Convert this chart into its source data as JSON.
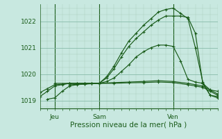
{
  "title": "",
  "xlabel": "Pression niveau de la mer( hPa )",
  "bg_color": "#c8e8e0",
  "line_color": "#1a5c1a",
  "grid_color_major": "#88bbaa",
  "grid_color_minor": "#aaccbb",
  "ylim": [
    1018.7,
    1022.65
  ],
  "xlim": [
    0,
    48
  ],
  "xtick_positions": [
    4,
    16,
    36
  ],
  "xtick_labels": [
    "Jeu",
    "Sam",
    "Ven"
  ],
  "ytick_positions": [
    1019,
    1020,
    1021,
    1022
  ],
  "ytick_labels": [
    "1019",
    "1020",
    "1021",
    "1022"
  ],
  "lines": [
    {
      "x": [
        0,
        2,
        4,
        6,
        8,
        10,
        12,
        14,
        16,
        18,
        20,
        22,
        24,
        26,
        28,
        30,
        32,
        34,
        36,
        38,
        40,
        42,
        44,
        46,
        48
      ],
      "y": [
        1019.15,
        1019.35,
        1019.55,
        1019.6,
        1019.65,
        1019.65,
        1019.65,
        1019.65,
        1019.65,
        1019.9,
        1020.3,
        1020.8,
        1021.25,
        1021.55,
        1021.85,
        1022.1,
        1022.35,
        1022.45,
        1022.5,
        1022.3,
        1022.1,
        1021.0,
        1019.7,
        1019.2,
        1019.1
      ]
    },
    {
      "x": [
        0,
        2,
        4,
        6,
        8,
        10,
        12,
        14,
        16,
        18,
        20,
        22,
        24,
        26,
        28,
        30,
        32,
        34,
        36,
        38,
        40,
        42,
        44,
        46,
        48
      ],
      "y": [
        1019.3,
        1019.45,
        1019.6,
        1019.62,
        1019.65,
        1019.65,
        1019.65,
        1019.65,
        1019.65,
        1019.85,
        1020.2,
        1020.65,
        1021.05,
        1021.35,
        1021.6,
        1021.85,
        1022.05,
        1022.2,
        1022.2,
        1022.2,
        1022.15,
        1021.55,
        1019.65,
        1019.2,
        1019.15
      ]
    },
    {
      "x": [
        2,
        4,
        6,
        8,
        10,
        12,
        14,
        16,
        18,
        20,
        22,
        24,
        26,
        28,
        30,
        32,
        34,
        36,
        38,
        40,
        42,
        44,
        46,
        48
      ],
      "y": [
        1019.05,
        1019.1,
        1019.35,
        1019.55,
        1019.6,
        1019.62,
        1019.65,
        1019.65,
        1019.72,
        1019.85,
        1020.1,
        1020.35,
        1020.65,
        1020.85,
        1021.0,
        1021.1,
        1021.1,
        1021.05,
        1020.5,
        1019.8,
        1019.7,
        1019.65,
        1019.4,
        1019.35
      ]
    },
    {
      "x": [
        4,
        8,
        12,
        16,
        20,
        24,
        28,
        32,
        36,
        40,
        42,
        44,
        46,
        48
      ],
      "y": [
        1019.65,
        1019.65,
        1019.65,
        1019.65,
        1019.68,
        1019.7,
        1019.72,
        1019.75,
        1019.72,
        1019.65,
        1019.6,
        1019.55,
        1019.4,
        1019.25
      ]
    },
    {
      "x": [
        8,
        12,
        16,
        20,
        24,
        28,
        32,
        36,
        40,
        42,
        44,
        46,
        48
      ],
      "y": [
        1019.6,
        1019.62,
        1019.65,
        1019.65,
        1019.67,
        1019.68,
        1019.7,
        1019.68,
        1019.6,
        1019.55,
        1019.5,
        1019.35,
        1019.2
      ]
    }
  ],
  "vline_positions": [
    4,
    16,
    36
  ],
  "figsize": [
    3.2,
    2.0
  ],
  "dpi": 100
}
